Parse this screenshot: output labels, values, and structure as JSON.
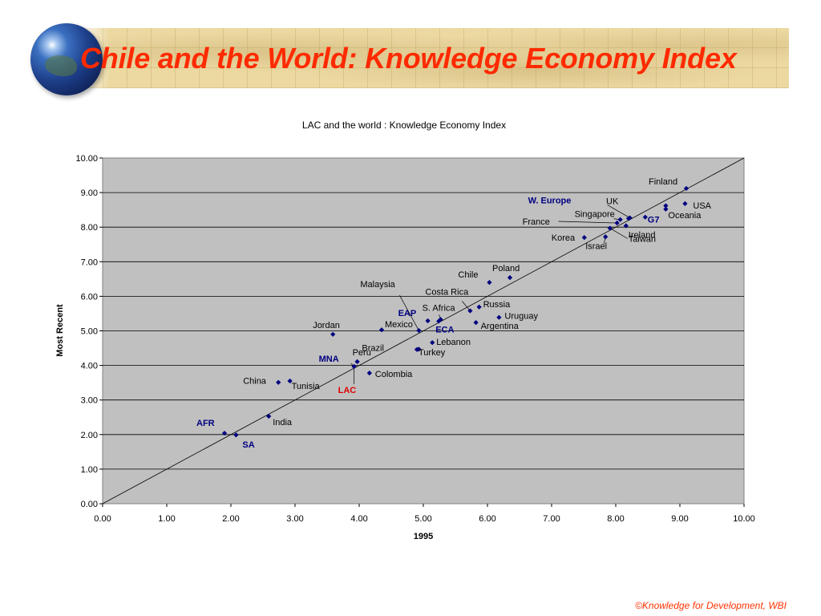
{
  "slide": {
    "title": "Chile and the World: Knowledge Economy Index",
    "footer": "©Knowledge for Development, WBI",
    "title_color": "#ff2a00"
  },
  "chart_data": {
    "type": "scatter",
    "title": "LAC and the world : Knowledge Economy Index",
    "xlabel": "1995",
    "ylabel": "Most Recent",
    "xlim": [
      0,
      10
    ],
    "ylim": [
      0,
      10
    ],
    "x_ticks": [
      "0.00",
      "1.00",
      "2.00",
      "3.00",
      "4.00",
      "5.00",
      "6.00",
      "7.00",
      "8.00",
      "9.00",
      "10.00"
    ],
    "y_ticks": [
      "0.00",
      "1.00",
      "2.00",
      "3.00",
      "4.00",
      "5.00",
      "6.00",
      "7.00",
      "8.00",
      "9.00",
      "10.00"
    ],
    "grid": "horizontal",
    "legend": "none",
    "reference_line": "y = x",
    "plot_bg": "#c0c0c0",
    "point_color": "#000080",
    "points": [
      {
        "label": "Finland",
        "x": 9.1,
        "y": 9.12,
        "style": "plain"
      },
      {
        "label": "USA",
        "x": 9.08,
        "y": 8.68,
        "style": "plain"
      },
      {
        "label": "Oceania",
        "x": 8.78,
        "y": 8.52,
        "style": "plain"
      },
      {
        "label": "",
        "x": 8.78,
        "y": 8.62,
        "style": "plain"
      },
      {
        "label": "UK",
        "x": 8.2,
        "y": 8.25,
        "style": "plain"
      },
      {
        "label": "W. Europe",
        "x": 8.22,
        "y": 8.27,
        "style": "group"
      },
      {
        "label": "G7",
        "x": 8.46,
        "y": 8.29,
        "style": "group"
      },
      {
        "label": "Singapore",
        "x": 8.07,
        "y": 8.22,
        "style": "plain"
      },
      {
        "label": "France",
        "x": 8.02,
        "y": 8.12,
        "style": "plain"
      },
      {
        "label": "Ireland",
        "x": 8.16,
        "y": 8.04,
        "style": "plain"
      },
      {
        "label": "Taiwan",
        "x": 7.91,
        "y": 7.97,
        "style": "plain"
      },
      {
        "label": "Israel",
        "x": 7.84,
        "y": 7.72,
        "style": "plain"
      },
      {
        "label": "Korea",
        "x": 7.51,
        "y": 7.7,
        "style": "plain"
      },
      {
        "label": "Poland",
        "x": 6.35,
        "y": 6.54,
        "style": "plain"
      },
      {
        "label": "Chile",
        "x": 6.03,
        "y": 6.4,
        "style": "plain"
      },
      {
        "label": "Russia",
        "x": 5.87,
        "y": 5.69,
        "style": "plain"
      },
      {
        "label": "Costa Rica",
        "x": 5.73,
        "y": 5.58,
        "style": "plain"
      },
      {
        "label": "Uruguay",
        "x": 6.18,
        "y": 5.39,
        "style": "plain"
      },
      {
        "label": "Argentina",
        "x": 5.82,
        "y": 5.24,
        "style": "plain"
      },
      {
        "label": "S. Africa",
        "x": 5.27,
        "y": 5.33,
        "style": "plain"
      },
      {
        "label": "ECA",
        "x": 5.24,
        "y": 5.28,
        "style": "group"
      },
      {
        "label": "EAP",
        "x": 5.07,
        "y": 5.29,
        "style": "group"
      },
      {
        "label": "Malaysia",
        "x": 4.93,
        "y": 5.01,
        "style": "plain"
      },
      {
        "label": "Mexico",
        "x": 4.35,
        "y": 5.03,
        "style": "plain"
      },
      {
        "label": "Jordan",
        "x": 3.59,
        "y": 4.9,
        "style": "plain"
      },
      {
        "label": "Lebanon",
        "x": 5.14,
        "y": 4.66,
        "style": "plain"
      },
      {
        "label": "Turkey",
        "x": 4.9,
        "y": 4.46,
        "style": "plain"
      },
      {
        "label": "Brazil",
        "x": 4.93,
        "y": 4.47,
        "style": "plain"
      },
      {
        "label": "Peru",
        "x": 3.97,
        "y": 4.11,
        "style": "plain"
      },
      {
        "label": "MNA",
        "x": 3.92,
        "y": 3.97,
        "style": "group"
      },
      {
        "label": "LAC",
        "x": 3.92,
        "y": 3.97,
        "style": "highlight"
      },
      {
        "label": "Colombia",
        "x": 4.16,
        "y": 3.78,
        "style": "plain"
      },
      {
        "label": "China",
        "x": 2.74,
        "y": 3.51,
        "style": "plain"
      },
      {
        "label": "Tunisia",
        "x": 2.92,
        "y": 3.55,
        "style": "plain"
      },
      {
        "label": "India",
        "x": 2.59,
        "y": 2.53,
        "style": "plain"
      },
      {
        "label": "AFR",
        "x": 1.9,
        "y": 2.04,
        "style": "group"
      },
      {
        "label": "SA",
        "x": 2.08,
        "y": 1.99,
        "style": "group"
      }
    ]
  }
}
